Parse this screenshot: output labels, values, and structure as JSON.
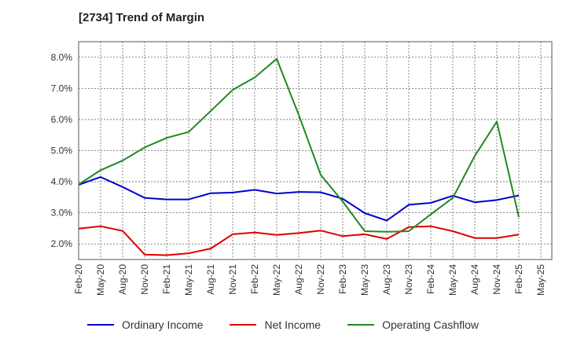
{
  "chart_data": {
    "type": "line",
    "title": "[2734]  Trend of Margin",
    "xlabel": "",
    "ylabel": "",
    "x_ticks": [
      "Feb-20",
      "May-20",
      "Aug-20",
      "Nov-20",
      "Feb-21",
      "May-21",
      "Aug-21",
      "Nov-21",
      "Feb-22",
      "May-22",
      "Aug-22",
      "Nov-22",
      "Feb-23",
      "May-23",
      "Aug-23",
      "Nov-23",
      "Feb-24",
      "May-24",
      "Aug-24",
      "Nov-24",
      "Feb-25",
      "May-25"
    ],
    "y_ticks": [
      "2.0%",
      "3.0%",
      "4.0%",
      "5.0%",
      "6.0%",
      "7.0%",
      "8.0%"
    ],
    "ylim": [
      1.5,
      8.5
    ],
    "grid": true,
    "legend_position": "bottom",
    "series": [
      {
        "name": "Ordinary Income",
        "color": "#0000cc",
        "values": [
          3.9,
          4.15,
          3.83,
          3.48,
          3.43,
          3.43,
          3.63,
          3.65,
          3.74,
          3.62,
          3.67,
          3.66,
          3.45,
          2.99,
          2.75,
          3.26,
          3.32,
          3.55,
          3.34,
          3.41,
          3.56
        ]
      },
      {
        "name": "Net Income",
        "color": "#dd0000",
        "values": [
          2.49,
          2.57,
          2.42,
          1.66,
          1.64,
          1.7,
          1.85,
          2.31,
          2.37,
          2.29,
          2.35,
          2.43,
          2.25,
          2.31,
          2.16,
          2.54,
          2.57,
          2.41,
          2.19,
          2.19,
          2.3
        ]
      },
      {
        "name": "Operating Cashflow",
        "color": "#228822",
        "values": [
          3.91,
          4.37,
          4.68,
          5.1,
          5.41,
          5.6,
          6.27,
          6.95,
          7.35,
          7.95,
          6.15,
          4.22,
          3.36,
          2.41,
          2.39,
          2.41,
          2.95,
          3.48,
          4.83,
          5.93,
          2.86
        ]
      }
    ]
  }
}
